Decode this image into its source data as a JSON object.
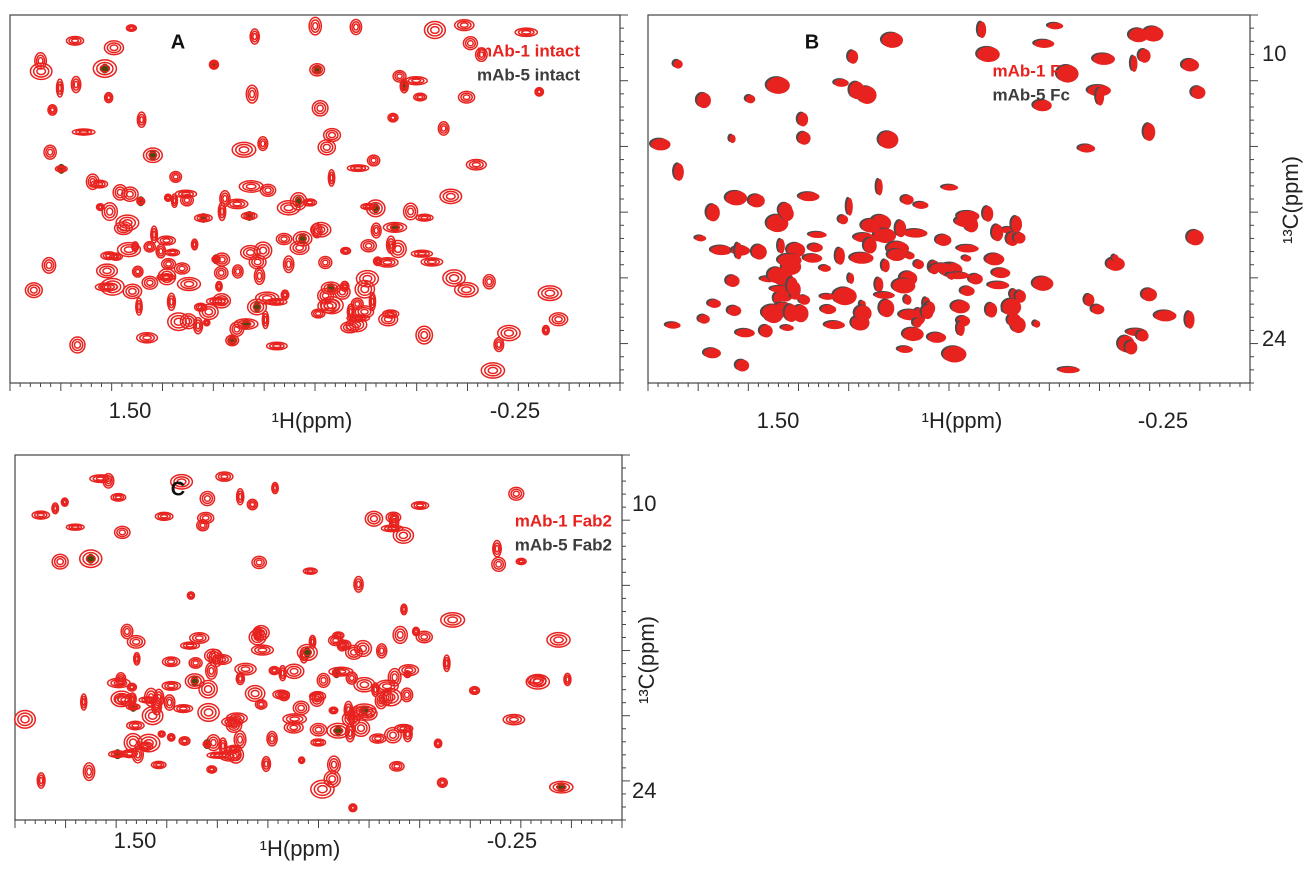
{
  "panels": [
    {
      "label": "A",
      "legend": [
        "mAb-1 intact",
        "mAb-5 intact"
      ],
      "x_label": "¹H(ppm)",
      "x_ticks": [
        "1.50",
        "-0.25"
      ]
    },
    {
      "label": "B",
      "legend": [
        "mAb-1 Fc",
        "mAb-5 Fc"
      ],
      "x_label": "¹H(ppm)",
      "x_ticks": [
        "1.50",
        "-0.25"
      ],
      "y_label": "¹³C(ppm)",
      "y_ticks": [
        "10",
        "24"
      ]
    },
    {
      "label": "C",
      "legend": [
        "mAb-1 Fab2",
        "mAb-5 Fab2"
      ],
      "x_label": "¹H(ppm)",
      "x_ticks": [
        "1.50",
        "-0.25"
      ],
      "y_label": "¹³C(ppm)",
      "y_ticks": [
        "10",
        "24"
      ]
    }
  ]
}
